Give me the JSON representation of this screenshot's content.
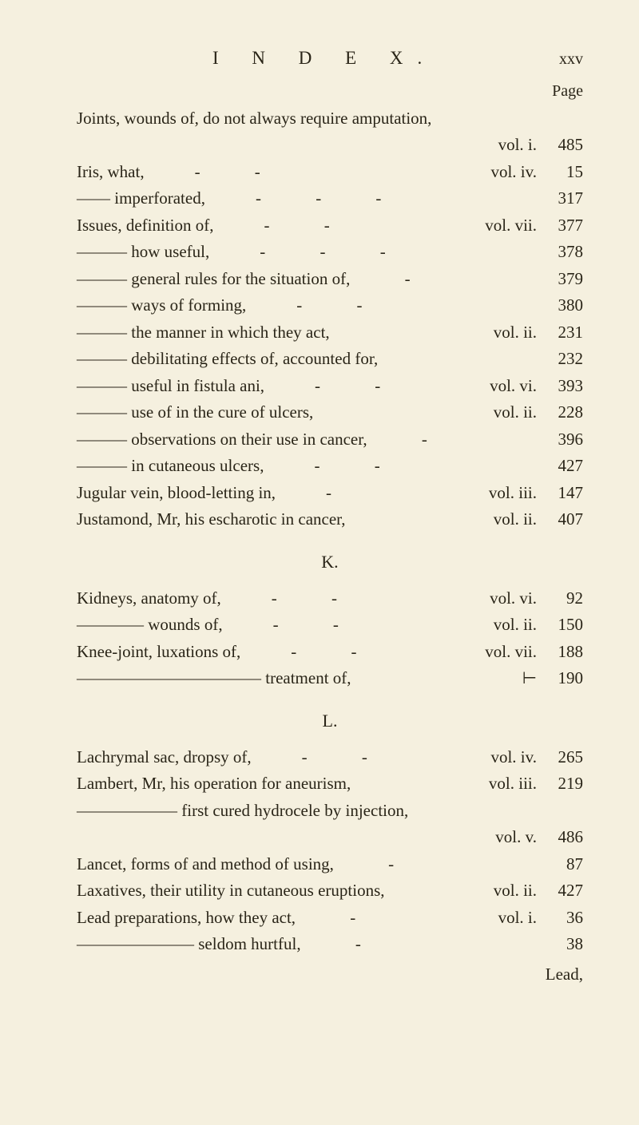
{
  "header": {
    "title": "I N D E X.",
    "page_number_roman": "xxv",
    "page_label": "Page"
  },
  "section_J": [
    {
      "label": "Joints, wounds of, do not always require amputation,",
      "vol": "",
      "pg": ""
    },
    {
      "label": "",
      "vol": "vol. i.",
      "pg": "485"
    },
    {
      "label": "Iris, what,            -             -",
      "vol": "vol. iv.",
      "pg": "15"
    },
    {
      "label": "—— imperforated,            -             -             -",
      "vol": "",
      "pg": "317"
    },
    {
      "label": "Issues, definition of,            -             -",
      "vol": "vol. vii.",
      "pg": "377"
    },
    {
      "label": "——— how useful,            -             -             -",
      "vol": "",
      "pg": "378"
    },
    {
      "label": "——— general rules for the situation of,             -",
      "vol": "",
      "pg": "379"
    },
    {
      "label": "——— ways of forming,            -             -",
      "vol": "",
      "pg": "380"
    },
    {
      "label": "——— the manner in which they act,",
      "vol": "vol. ii.",
      "pg": "231"
    },
    {
      "label": "——— debilitating effects of, accounted for,",
      "vol": "",
      "pg": "232"
    },
    {
      "label": "——— useful in fistula ani,            -             -",
      "vol": "vol. vi.",
      "pg": "393"
    },
    {
      "label": "——— use of in the cure of ulcers,",
      "vol": "vol. ii.",
      "pg": "228"
    },
    {
      "label": "——— observations on their use in cancer,             -",
      "vol": "",
      "pg": "396"
    },
    {
      "label": "——— in cutaneous ulcers,            -             -",
      "vol": "",
      "pg": "427"
    },
    {
      "label": "Jugular vein, blood-letting in,            -",
      "vol": "vol. iii.",
      "pg": "147"
    },
    {
      "label": "Justamond, Mr, his escharotic in cancer,",
      "vol": "vol. ii.",
      "pg": "407"
    }
  ],
  "section_K_letter": "K.",
  "section_K": [
    {
      "label": "Kidneys, anatomy of,            -             -",
      "vol": "vol. vi.",
      "pg": "92"
    },
    {
      "label": "———— wounds of,            -             -",
      "vol": "vol. ii.",
      "pg": "150"
    },
    {
      "label": "Knee-joint, luxations of,            -             -",
      "vol": "vol. vii.",
      "pg": "188"
    },
    {
      "label": "——————————— treatment of,",
      "vol": "⊢",
      "pg": "190"
    }
  ],
  "section_L_letter": "L.",
  "section_L": [
    {
      "label": "Lachrymal sac, dropsy of,            -             -",
      "vol": "vol. iv.",
      "pg": "265"
    },
    {
      "label": "Lambert, Mr, his operation for aneurism,",
      "vol": "vol. iii.",
      "pg": "219"
    },
    {
      "label": "—————— first cured hydrocele by injection,",
      "vol": "",
      "pg": ""
    },
    {
      "label": "",
      "vol": "vol. v.",
      "pg": "486"
    },
    {
      "label": "Lancet, forms of and method of using,             -",
      "vol": "",
      "pg": "87"
    },
    {
      "label": "Laxatives, their utility in cutaneous eruptions,",
      "vol": "vol. ii.",
      "pg": "427"
    },
    {
      "label": "Lead preparations, how they act,             -",
      "vol": "vol. i.",
      "pg": "36"
    },
    {
      "label": "——————— seldom hurtful,             -",
      "vol": "",
      "pg": "38"
    }
  ],
  "trailing_word": "Lead,"
}
